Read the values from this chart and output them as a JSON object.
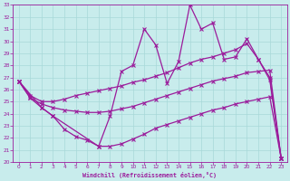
{
  "xlabel": "Windchill (Refroidissement éolien,°C)",
  "background_color": "#c8ecec",
  "line_color": "#9b1b9b",
  "grid_color": "#a8d8d8",
  "xlim": [
    -0.5,
    23.5
  ],
  "ylim": [
    20,
    33
  ],
  "xticks": [
    0,
    1,
    2,
    3,
    4,
    5,
    6,
    7,
    8,
    9,
    10,
    11,
    12,
    13,
    14,
    15,
    16,
    17,
    18,
    19,
    20,
    21,
    22,
    23
  ],
  "yticks": [
    20,
    21,
    22,
    23,
    24,
    25,
    26,
    27,
    28,
    29,
    30,
    31,
    32,
    33
  ],
  "series1_x": [
    0,
    1,
    2,
    3,
    4,
    5,
    6,
    7,
    8,
    9,
    10,
    11,
    12,
    13,
    14,
    15,
    16,
    17,
    18,
    19,
    20,
    21,
    22,
    23
  ],
  "series1_y": [
    26.7,
    25.5,
    25.0,
    25.0,
    25.2,
    25.5,
    25.7,
    25.9,
    26.1,
    26.3,
    26.6,
    26.8,
    27.1,
    27.4,
    27.8,
    28.2,
    28.5,
    28.7,
    29.0,
    29.3,
    29.8,
    28.5,
    27.0,
    20.3
  ],
  "series2_x": [
    0,
    1,
    2,
    3,
    4,
    5,
    6,
    7,
    8,
    9,
    10,
    11,
    12,
    13,
    14,
    15,
    16,
    17,
    18,
    19,
    20,
    21,
    22,
    23
  ],
  "series2_y": [
    26.7,
    25.3,
    24.8,
    24.5,
    24.3,
    24.2,
    24.1,
    24.1,
    24.2,
    24.4,
    24.6,
    24.9,
    25.2,
    25.5,
    25.8,
    26.1,
    26.4,
    26.7,
    26.9,
    27.1,
    27.4,
    27.5,
    27.6,
    20.3
  ],
  "series3_x": [
    0,
    1,
    2,
    3,
    4,
    5,
    6,
    7,
    8,
    9,
    10,
    11,
    12,
    13,
    14,
    15,
    16,
    17,
    18,
    19,
    20,
    21,
    22,
    23
  ],
  "series3_y": [
    26.7,
    25.3,
    24.5,
    23.8,
    22.7,
    22.1,
    21.8,
    21.3,
    21.3,
    21.5,
    21.9,
    22.3,
    22.8,
    23.1,
    23.4,
    23.7,
    24.0,
    24.3,
    24.5,
    24.8,
    25.0,
    25.2,
    25.4,
    20.3
  ],
  "series4_x": [
    0,
    2,
    3,
    7,
    8,
    9,
    10,
    11,
    12,
    13,
    14,
    15,
    16,
    17,
    18,
    19,
    20,
    21,
    22,
    23
  ],
  "series4_y": [
    26.7,
    24.5,
    23.8,
    21.3,
    23.8,
    27.5,
    28.0,
    31.0,
    29.7,
    26.5,
    28.3,
    33.0,
    31.0,
    31.5,
    28.5,
    28.7,
    30.2,
    28.5,
    26.8,
    20.3
  ]
}
